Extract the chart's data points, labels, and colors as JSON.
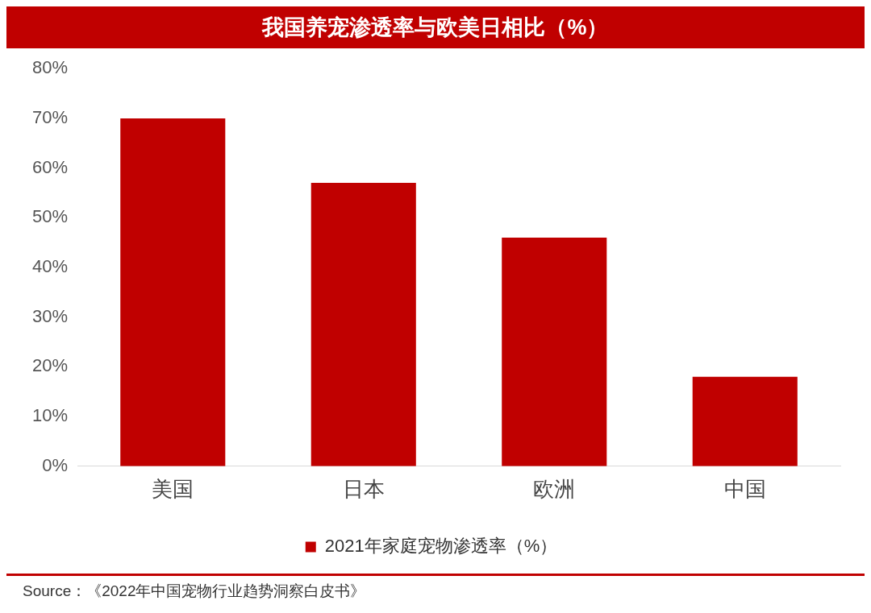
{
  "chart_data": {
    "type": "bar",
    "title": "我国养宠渗透率与欧美日相比（%）",
    "categories": [
      "美国",
      "日本",
      "欧洲",
      "中国"
    ],
    "series": [
      {
        "name": "2021年家庭宠物渗透率（%）",
        "color": "#c00000",
        "values": [
          70,
          57,
          46,
          18
        ]
      }
    ],
    "ylim": [
      0,
      80
    ],
    "yticks": [
      {
        "value": 0,
        "label": "0%"
      },
      {
        "value": 10,
        "label": "10%"
      },
      {
        "value": 20,
        "label": "20%"
      },
      {
        "value": 30,
        "label": "30%"
      },
      {
        "value": 40,
        "label": "40%"
      },
      {
        "value": 50,
        "label": "50%"
      },
      {
        "value": 60,
        "label": "60%"
      },
      {
        "value": 70,
        "label": "70%"
      },
      {
        "value": 80,
        "label": "80%"
      }
    ],
    "grid": false,
    "legend": "bottom",
    "annotations": [
      "Source：《2022年中国宠物行业趋势洞察白皮书》"
    ]
  }
}
